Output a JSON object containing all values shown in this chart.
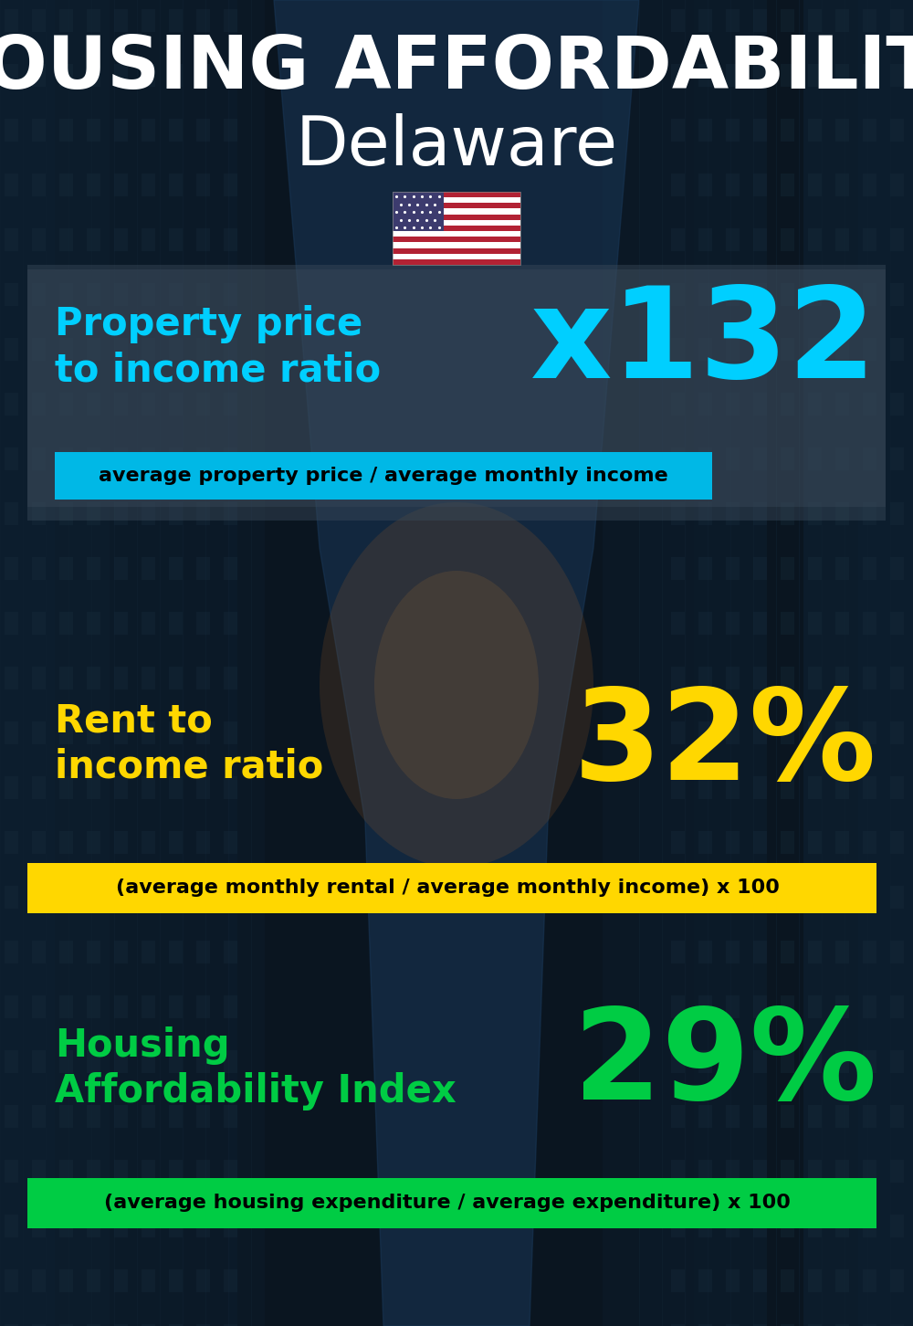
{
  "title_line1": "HOUSING AFFORDABILITY",
  "title_line2": "Delaware",
  "section1_label_line1": "Property price",
  "section1_label_line2": "to income ratio",
  "section1_value": "x132",
  "section1_label_color": "#00cfff",
  "section1_value_color": "#00cfff",
  "section1_sublabel": "average property price / average monthly income",
  "section1_sublabel_bg": "#00b8e6",
  "section2_label_line1": "Rent to",
  "section2_label_line2": "income ratio",
  "section2_value": "32%",
  "section2_label_color": "#ffd700",
  "section2_value_color": "#ffd700",
  "section2_sublabel": "(average monthly rental / average monthly income) x 100",
  "section2_sublabel_bg": "#ffd700",
  "section3_label_line1": "Housing",
  "section3_label_line2": "Affordability Index",
  "section3_value": "29%",
  "section3_label_color": "#00cc44",
  "section3_value_color": "#00cc44",
  "section3_sublabel": "(average housing expenditure / average expenditure) x 100",
  "section3_sublabel_bg": "#00cc44",
  "bg_dark": "#0a1520",
  "bg_mid": "#112233",
  "title_color": "#ffffff",
  "subtitle_color": "#ffffff"
}
